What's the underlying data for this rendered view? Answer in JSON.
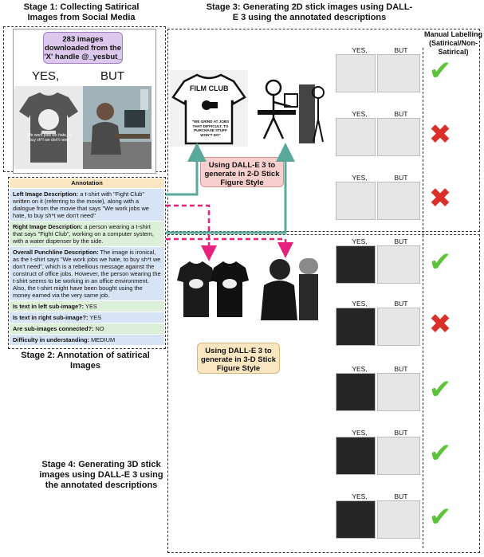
{
  "stage1": {
    "title": "Stage 1: Collecting Satirical Images from Social Media",
    "note": "283 images downloaded from the 'X' handle @_yesbut_",
    "yes": "YES,",
    "but": "BUT",
    "caption": "We work jobs we hate, to buy sh*t we don't need"
  },
  "stage2": {
    "title": "Stage 2: Annotation of satirical Images",
    "header": "Annotation",
    "rows": [
      {
        "key": "Left Image Description:",
        "value": " a t-shirt with \"Fight Club\" written on it (referring to the movie), along with a dialogue from the movie that says \"We work jobs we hate, to buy sh*t we don't need\"",
        "color": "#d6e4f5"
      },
      {
        "key": "Right Image Description:",
        "value": " a person wearing a t-shirt that says \"Fight Club\", working on a computer system, with a water dispenser by the side.",
        "color": "#dcefd8"
      },
      {
        "key": "Overall Punchline Description:",
        "value": " The image is ironical, as the t-shirt says \"We work jobs we hate, to buy sh*t we don't need\", which is a rebellious message against the construct of office jobs. However, the person wearing the t-shirt seems to be working in an office environment. Also, the t-shirt might have been bought using the money earned via the very same job.",
        "color": "#d6e4f5"
      },
      {
        "key": "Is text in left sub-image?:",
        "value": " YES",
        "color": "#dcefd8"
      },
      {
        "key": "Is text in right sub-image?:",
        "value": " YES",
        "color": "#d6e4f5"
      },
      {
        "key": "Are sub-images connected?:",
        "value": " NO",
        "color": "#dcefd8"
      },
      {
        "key": "Difficulty in understanding:",
        "value": " MEDIUM",
        "color": "#d6e4f5"
      }
    ]
  },
  "stage3": {
    "title": "Stage 3: Generating 2D stick images using DALL-E 3 using the annotated descriptions",
    "callout": "Using DALL-E 3 to generate in 2-D Stick Figure Style",
    "shirt_text": "FILM CLUB",
    "shirt_quote": "\"WE GRIND AT JOBS THAT DIFFICULT, TO PURCHASE STUFF WON'T DO\""
  },
  "stage3d": {
    "callout": "Using DALL-E 3 to generate in 3-D Stick Figure Style"
  },
  "stage4": {
    "title": "Stage 4: Generating 3D stick images using DALL-E 3 using the annotated descriptions"
  },
  "manual": {
    "title": "Manual Labelling (Satirical/Non-Satirical)"
  },
  "labels": {
    "yes": "YES,",
    "but": "BUT"
  },
  "results2d": [
    "check",
    "cross",
    "cross"
  ],
  "results3d": [
    "check",
    "cross",
    "check",
    "check",
    "check"
  ],
  "colors": {
    "arrow_teal": "#5aa89a",
    "arrow_pink": "#e6217e",
    "check": "#5cc23a",
    "cross": "#d9302a"
  }
}
